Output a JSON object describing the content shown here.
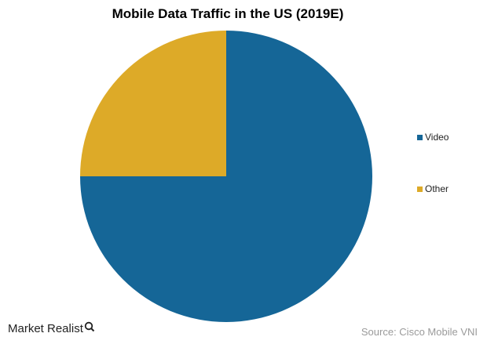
{
  "chart_data": {
    "type": "pie",
    "title": "Mobile Data Traffic in the US (2019E)",
    "categories": [
      "Video",
      "Other"
    ],
    "values": [
      75,
      25
    ],
    "colors": [
      "#156697",
      "#DDAA28"
    ],
    "legend_position": "right"
  },
  "footer": {
    "brand": "Market Realist",
    "brand_icon": "magnifier-q-icon",
    "source": "Source: Cisco Mobile VNI"
  }
}
